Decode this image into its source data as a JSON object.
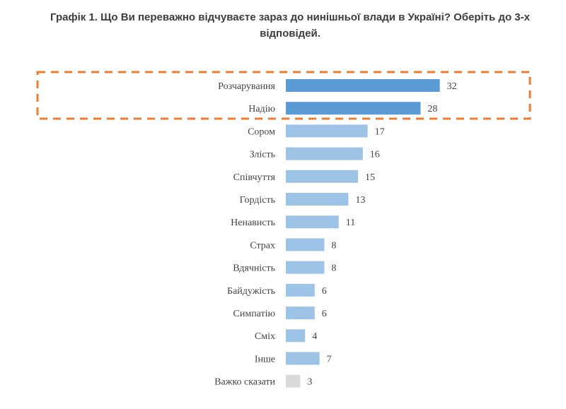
{
  "chart_data": {
    "type": "bar",
    "orientation": "horizontal",
    "title": "Графік 1. Що Ви переважно відчуваєте зараз до нинішньої влади в Україні? Оберіть до 3-х відповідей.",
    "categories": [
      "Розчарування",
      "Надію",
      "Сором",
      "Злість",
      "Співчуття",
      "Гордість",
      "Ненависть",
      "Страх",
      "Вдячність",
      "Байдужість",
      "Симпатію",
      "Сміх",
      "Інше",
      "Важко сказати"
    ],
    "values": [
      32,
      28,
      17,
      16,
      15,
      13,
      11,
      8,
      8,
      6,
      6,
      4,
      7,
      3
    ],
    "highlighted": [
      0,
      1
    ],
    "xlabel": "",
    "ylabel": "",
    "xlim": [
      0,
      32
    ],
    "grid": false,
    "legend": "none",
    "colors": {
      "highlight": "#5b9bd5",
      "normal": "#9dc3e6",
      "other": "#d9d9d9",
      "box": "#ed7d31"
    }
  }
}
